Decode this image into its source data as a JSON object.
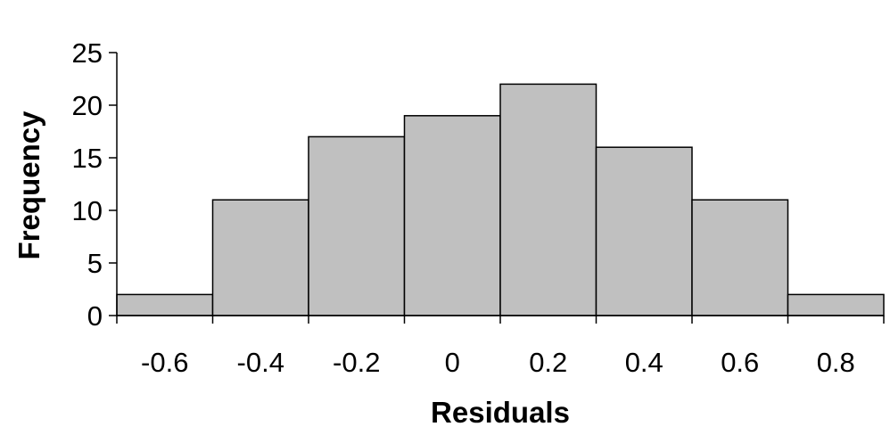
{
  "chart_data": {
    "type": "bar",
    "title": "",
    "xlabel": "Residuals",
    "ylabel": "Frequency",
    "categories": [
      "-0.6",
      "-0.4",
      "-0.2",
      "0",
      "0.2",
      "0.4",
      "0.6",
      "0.8"
    ],
    "values": [
      2,
      11,
      17,
      19,
      22,
      16,
      11,
      2
    ],
    "ylim": [
      0,
      25
    ],
    "yticks": [
      "0",
      "5",
      "10",
      "15",
      "20",
      "25"
    ],
    "grid": false,
    "legend": "none",
    "colors": {
      "bar_fill": "#c0c0c0",
      "bar_stroke": "#000000",
      "axis": "#000000"
    }
  }
}
